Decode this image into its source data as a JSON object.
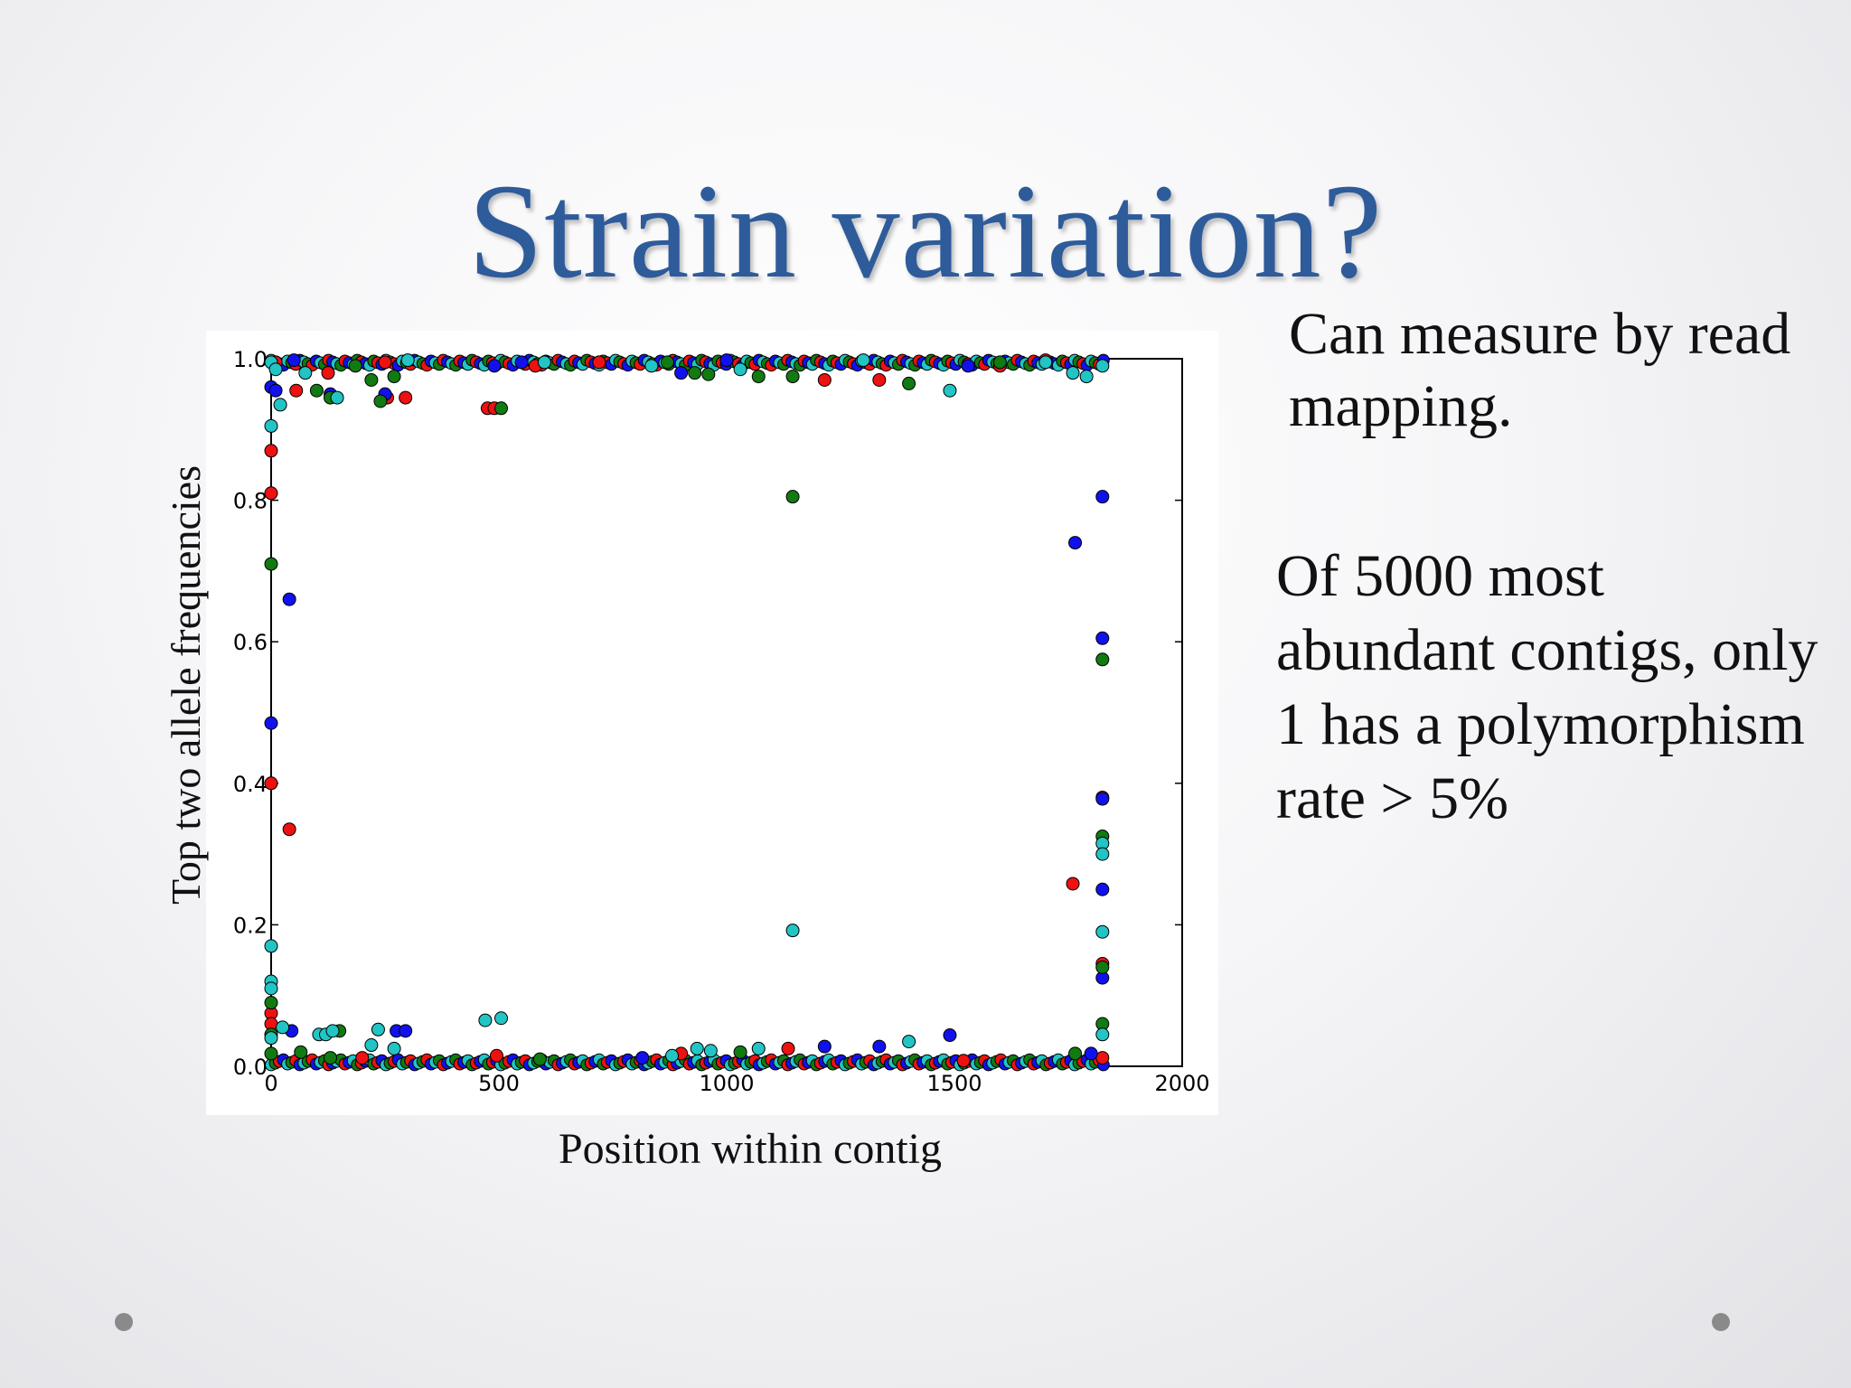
{
  "slide": {
    "title": "Strain variation?",
    "side_text_1": "Can measure by read mapping.",
    "side_text_2": "Of 5000 most abundant contigs, only 1 has a polymorphism rate > 5%"
  },
  "chart_data": {
    "type": "scatter",
    "title": "",
    "xlabel": "Position within contig",
    "ylabel": "Top two allele frequencies",
    "xlim": [
      0,
      2000
    ],
    "ylim": [
      0,
      1.0
    ],
    "x_ticks": [
      "0",
      "500",
      "1000",
      "1500",
      "2000"
    ],
    "y_ticks": [
      "0.0",
      "0.2",
      "0.4",
      "0.6",
      "0.8",
      "1.0"
    ],
    "grid": false,
    "colors": {
      "red": "#ee1111",
      "blue": "#1111ee",
      "green": "#117a11",
      "cyan": "#22c4c4"
    },
    "series": [
      {
        "color": "red",
        "points": [
          [
            0,
            0.87
          ],
          [
            0,
            0.81
          ],
          [
            0,
            0.4
          ],
          [
            40,
            0.335
          ],
          [
            0,
            0.075
          ],
          [
            0,
            0.06
          ],
          [
            55,
            0.955
          ],
          [
            255,
            0.945
          ],
          [
            295,
            0.945
          ],
          [
            475,
            0.93
          ],
          [
            490,
            0.93
          ],
          [
            125,
            0.98
          ],
          [
            200,
            0.012
          ],
          [
            495,
            0.015
          ],
          [
            580,
            0.99
          ],
          [
            720,
            0.995
          ],
          [
            900,
            0.018
          ],
          [
            1135,
            0.025
          ],
          [
            1215,
            0.97
          ],
          [
            1335,
            0.97
          ],
          [
            1520,
            0.008
          ],
          [
            1600,
            0.99
          ],
          [
            1760,
            0.258
          ],
          [
            1825,
            0.38
          ],
          [
            1825,
            0.145
          ],
          [
            1825,
            0.012
          ],
          [
            1700,
            0.998
          ],
          [
            10,
            0.995
          ],
          [
            250,
            0.995
          ]
        ]
      },
      {
        "color": "blue",
        "points": [
          [
            0,
            0.485
          ],
          [
            40,
            0.66
          ],
          [
            0,
            0.96
          ],
          [
            10,
            0.955
          ],
          [
            45,
            0.05
          ],
          [
            130,
            0.95
          ],
          [
            250,
            0.95
          ],
          [
            275,
            0.05
          ],
          [
            295,
            0.05
          ],
          [
            490,
            0.99
          ],
          [
            550,
            0.995
          ],
          [
            900,
            0.98
          ],
          [
            1215,
            0.028
          ],
          [
            1335,
            0.028
          ],
          [
            1490,
            0.044
          ],
          [
            1530,
            0.99
          ],
          [
            1825,
            0.805
          ],
          [
            1765,
            0.74
          ],
          [
            1825,
            0.605
          ],
          [
            1825,
            0.378
          ],
          [
            1825,
            0.25
          ],
          [
            1825,
            0.125
          ],
          [
            1800,
            0.018
          ],
          [
            815,
            0.012
          ],
          [
            50,
            0.998
          ],
          [
            1000,
            0.998
          ]
        ]
      },
      {
        "color": "green",
        "points": [
          [
            0,
            0.71
          ],
          [
            0,
            0.09
          ],
          [
            0,
            0.045
          ],
          [
            0,
            0.018
          ],
          [
            65,
            0.02
          ],
          [
            100,
            0.955
          ],
          [
            130,
            0.945
          ],
          [
            150,
            0.05
          ],
          [
            185,
            0.99
          ],
          [
            220,
            0.97
          ],
          [
            240,
            0.94
          ],
          [
            270,
            0.975
          ],
          [
            505,
            0.93
          ],
          [
            590,
            0.01
          ],
          [
            930,
            0.98
          ],
          [
            960,
            0.978
          ],
          [
            1070,
            0.975
          ],
          [
            1145,
            0.805
          ],
          [
            1145,
            0.975
          ],
          [
            1030,
            0.02
          ],
          [
            1400,
            0.965
          ],
          [
            1825,
            0.575
          ],
          [
            1825,
            0.325
          ],
          [
            1825,
            0.14
          ],
          [
            1825,
            0.06
          ],
          [
            1765,
            0.018
          ],
          [
            130,
            0.012
          ],
          [
            870,
            0.995
          ],
          [
            1600,
            0.995
          ]
        ]
      },
      {
        "color": "cyan",
        "points": [
          [
            0,
            0.995
          ],
          [
            10,
            0.985
          ],
          [
            0,
            0.905
          ],
          [
            20,
            0.935
          ],
          [
            0,
            0.17
          ],
          [
            0,
            0.12
          ],
          [
            0,
            0.11
          ],
          [
            0,
            0.04
          ],
          [
            25,
            0.055
          ],
          [
            75,
            0.98
          ],
          [
            105,
            0.045
          ],
          [
            120,
            0.045
          ],
          [
            135,
            0.05
          ],
          [
            145,
            0.945
          ],
          [
            220,
            0.03
          ],
          [
            235,
            0.052
          ],
          [
            270,
            0.025
          ],
          [
            470,
            0.065
          ],
          [
            505,
            0.068
          ],
          [
            835,
            0.99
          ],
          [
            880,
            0.015
          ],
          [
            935,
            0.025
          ],
          [
            965,
            0.022
          ],
          [
            1030,
            0.985
          ],
          [
            1070,
            0.025
          ],
          [
            1145,
            0.192
          ],
          [
            1400,
            0.035
          ],
          [
            1490,
            0.955
          ],
          [
            1760,
            0.98
          ],
          [
            1790,
            0.975
          ],
          [
            1825,
            0.315
          ],
          [
            1825,
            0.3
          ],
          [
            1825,
            0.19
          ],
          [
            1825,
            0.045
          ],
          [
            1825,
            0.99
          ],
          [
            600,
            0.995
          ],
          [
            1300,
            0.998
          ],
          [
            1700,
            0.995
          ],
          [
            300,
            0.998
          ]
        ]
      }
    ],
    "dense_bands": [
      {
        "y": 0.998,
        "x_from": 0,
        "x_to": 1830
      },
      {
        "y": 0.002,
        "x_from": 0,
        "x_to": 1830
      }
    ]
  }
}
